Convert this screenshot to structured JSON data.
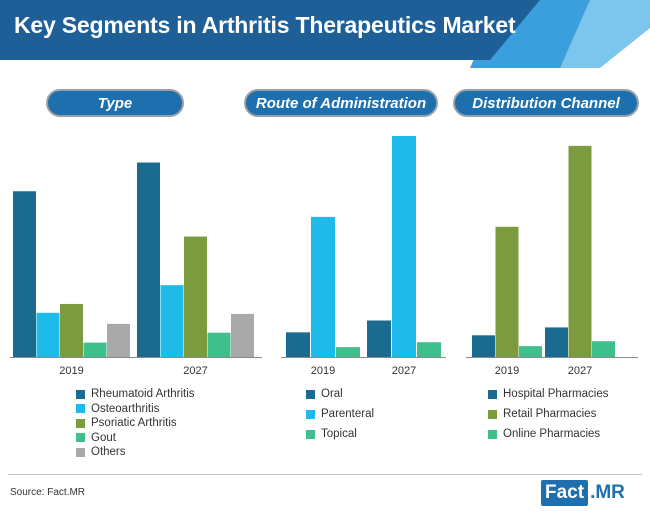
{
  "title": "Key Segments in Arthritis Therapeutics Market",
  "source": "Source: Fact.MR",
  "logo": {
    "box": "Fact",
    "rest": ".MR"
  },
  "colors": {
    "header_dark": "#1d5f96",
    "header_mid": "#2a7fc1",
    "header_light": "#5bb3e6",
    "pill": "#1d6fae"
  },
  "chart_data": [
    {
      "type": "bar",
      "title": "Type",
      "categories": [
        "2019",
        "2027"
      ],
      "series": [
        {
          "name": "Rheumatoid Arthritis",
          "color": "#1b6a8f",
          "values": [
            75,
            88
          ]
        },
        {
          "name": "Osteoarthritis",
          "color": "#1ebbea",
          "values": [
            20,
            32.5
          ]
        },
        {
          "name": "Psoriatic Arthritis",
          "color": "#7c9a3e",
          "values": [
            24,
            54.5
          ]
        },
        {
          "name": "Gout",
          "color": "#3fbf8c",
          "values": [
            6.5,
            11
          ]
        },
        {
          "name": "Others",
          "color": "#a9a9a9",
          "values": [
            15,
            19.5
          ]
        }
      ],
      "ylim": [
        0,
        100
      ],
      "grid": false,
      "legend": "bottom"
    },
    {
      "type": "bar",
      "title": "Route of Administration",
      "categories": [
        "2019",
        "2027"
      ],
      "series": [
        {
          "name": "Oral",
          "color": "#1b6a8f",
          "values": [
            12.5,
            18.5
          ]
        },
        {
          "name": "Parenteral",
          "color": "#1ebbea",
          "values": [
            71,
            112
          ]
        },
        {
          "name": "Topical",
          "color": "#3fbf8c",
          "values": [
            5,
            7.5
          ]
        }
      ],
      "ylim": [
        0,
        112
      ],
      "grid": false,
      "legend": "bottom"
    },
    {
      "type": "bar",
      "title": "Distribution Channel",
      "categories": [
        "2019",
        "2027"
      ],
      "series": [
        {
          "name": "Hospital Pharmacies",
          "color": "#1b6a8f",
          "values": [
            11,
            15
          ]
        },
        {
          "name": "Retail Pharmacies",
          "color": "#7c9a3e",
          "values": [
            66,
            107
          ]
        },
        {
          "name": "Online Pharmacies",
          "color": "#3fbf8c",
          "values": [
            5.5,
            8
          ]
        }
      ],
      "ylim": [
        0,
        112
      ],
      "grid": false,
      "legend": "bottom"
    }
  ]
}
